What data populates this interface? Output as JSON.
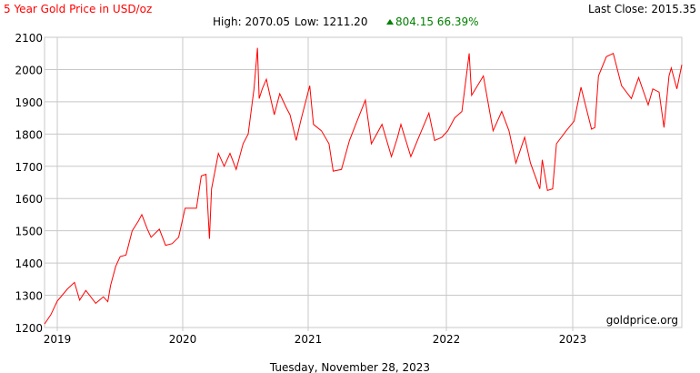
{
  "chart_data": {
    "type": "line",
    "title": "5 Year Gold Price in USD/oz",
    "last_close": "Last Close: 2015.35",
    "stats": {
      "high": "High: 2070.05",
      "low": "Low: 1211.20",
      "change": "804.15 66.39%"
    },
    "watermark": "goldprice.org",
    "date_label": "Tuesday, November 28, 2023",
    "ylim": [
      1200,
      2100
    ],
    "yticks": [
      "1200",
      "1300",
      "1400",
      "1500",
      "1600",
      "1700",
      "1800",
      "1900",
      "2000",
      "2100"
    ],
    "xticks": [
      "2019",
      "2020",
      "2021",
      "2022",
      "2023"
    ],
    "grid": true,
    "colors": {
      "line": "#ff0000",
      "title": "#ff0000",
      "change": "#008000",
      "grid": "#c8c8c8"
    },
    "series": [
      {
        "values": [
          [
            "2018-11-28",
            1211
          ],
          [
            "2018-12-15",
            1240
          ],
          [
            "2019-01-01",
            1282
          ],
          [
            "2019-01-31",
            1320
          ],
          [
            "2019-02-20",
            1340
          ],
          [
            "2019-03-07",
            1285
          ],
          [
            "2019-03-25",
            1315
          ],
          [
            "2019-04-23",
            1275
          ],
          [
            "2019-05-15",
            1295
          ],
          [
            "2019-05-28",
            1280
          ],
          [
            "2019-06-05",
            1330
          ],
          [
            "2019-06-20",
            1390
          ],
          [
            "2019-07-03",
            1420
          ],
          [
            "2019-07-20",
            1425
          ],
          [
            "2019-08-07",
            1500
          ],
          [
            "2019-08-25",
            1530
          ],
          [
            "2019-09-04",
            1550
          ],
          [
            "2019-09-20",
            1505
          ],
          [
            "2019-10-01",
            1480
          ],
          [
            "2019-10-25",
            1505
          ],
          [
            "2019-11-12",
            1455
          ],
          [
            "2019-12-01",
            1460
          ],
          [
            "2019-12-20",
            1480
          ],
          [
            "2020-01-08",
            1570
          ],
          [
            "2020-01-25",
            1570
          ],
          [
            "2020-02-10",
            1570
          ],
          [
            "2020-02-24",
            1670
          ],
          [
            "2020-03-09",
            1675
          ],
          [
            "2020-03-19",
            1475
          ],
          [
            "2020-03-25",
            1630
          ],
          [
            "2020-04-14",
            1740
          ],
          [
            "2020-05-01",
            1700
          ],
          [
            "2020-05-18",
            1740
          ],
          [
            "2020-06-05",
            1690
          ],
          [
            "2020-06-25",
            1770
          ],
          [
            "2020-07-10",
            1800
          ],
          [
            "2020-07-27",
            1940
          ],
          [
            "2020-08-06",
            2067
          ],
          [
            "2020-08-11",
            1910
          ],
          [
            "2020-08-20",
            1940
          ],
          [
            "2020-09-01",
            1970
          ],
          [
            "2020-09-24",
            1860
          ],
          [
            "2020-10-10",
            1925
          ],
          [
            "2020-10-30",
            1880
          ],
          [
            "2020-11-09",
            1860
          ],
          [
            "2020-11-27",
            1780
          ],
          [
            "2020-12-10",
            1840
          ],
          [
            "2021-01-05",
            1950
          ],
          [
            "2021-01-15",
            1830
          ],
          [
            "2021-02-05",
            1810
          ],
          [
            "2021-02-25",
            1770
          ],
          [
            "2021-03-08",
            1685
          ],
          [
            "2021-03-30",
            1690
          ],
          [
            "2021-04-20",
            1780
          ],
          [
            "2021-05-10",
            1840
          ],
          [
            "2021-06-01",
            1905
          ],
          [
            "2021-06-17",
            1770
          ],
          [
            "2021-07-15",
            1830
          ],
          [
            "2021-08-09",
            1730
          ],
          [
            "2021-08-25",
            1790
          ],
          [
            "2021-09-03",
            1830
          ],
          [
            "2021-09-29",
            1730
          ],
          [
            "2021-10-20",
            1790
          ],
          [
            "2021-11-16",
            1865
          ],
          [
            "2021-12-01",
            1780
          ],
          [
            "2021-12-20",
            1790
          ],
          [
            "2022-01-05",
            1810
          ],
          [
            "2022-01-25",
            1850
          ],
          [
            "2022-02-15",
            1870
          ],
          [
            "2022-03-08",
            2050
          ],
          [
            "2022-03-15",
            1920
          ],
          [
            "2022-04-18",
            1980
          ],
          [
            "2022-05-16",
            1810
          ],
          [
            "2022-06-10",
            1870
          ],
          [
            "2022-07-01",
            1810
          ],
          [
            "2022-07-21",
            1710
          ],
          [
            "2022-08-15",
            1790
          ],
          [
            "2022-09-01",
            1710
          ],
          [
            "2022-09-28",
            1630
          ],
          [
            "2022-10-05",
            1720
          ],
          [
            "2022-10-20",
            1625
          ],
          [
            "2022-11-04",
            1630
          ],
          [
            "2022-11-15",
            1770
          ],
          [
            "2022-12-13",
            1810
          ],
          [
            "2023-01-05",
            1840
          ],
          [
            "2023-01-26",
            1945
          ],
          [
            "2023-02-27",
            1815
          ],
          [
            "2023-03-09",
            1820
          ],
          [
            "2023-03-20",
            1980
          ],
          [
            "2023-04-13",
            2040
          ],
          [
            "2023-05-04",
            2050
          ],
          [
            "2023-05-29",
            1950
          ],
          [
            "2023-06-28",
            1910
          ],
          [
            "2023-07-20",
            1975
          ],
          [
            "2023-08-18",
            1890
          ],
          [
            "2023-09-01",
            1940
          ],
          [
            "2023-09-20",
            1930
          ],
          [
            "2023-10-05",
            1820
          ],
          [
            "2023-10-20",
            1980
          ],
          [
            "2023-10-27",
            2005
          ],
          [
            "2023-11-13",
            1940
          ],
          [
            "2023-11-28",
            2015
          ]
        ]
      }
    ]
  }
}
